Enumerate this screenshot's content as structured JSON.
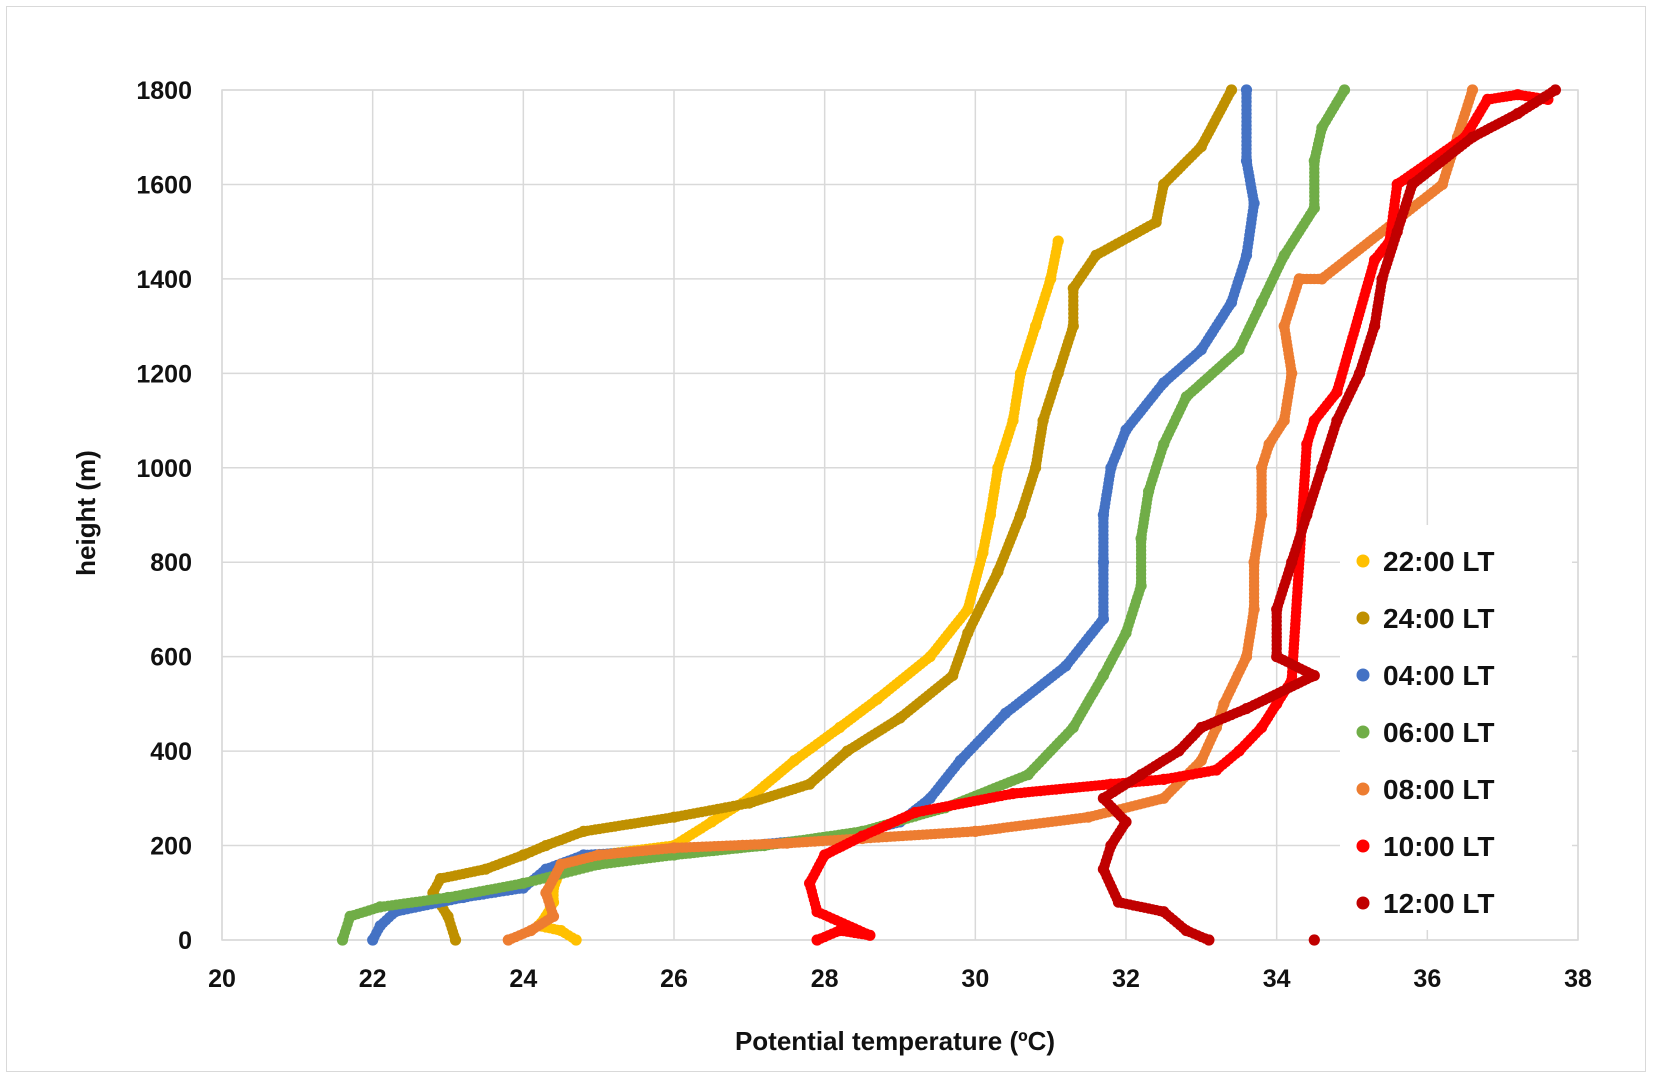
{
  "chart_data": {
    "type": "scatter",
    "title": "",
    "xlabel": "Potential temperature (ºC)",
    "ylabel": "height (m)",
    "xlim": [
      20,
      38
    ],
    "ylim": [
      0,
      1800
    ],
    "x_ticks": [
      "20",
      "22",
      "24",
      "26",
      "28",
      "30",
      "32",
      "34",
      "36",
      "38"
    ],
    "y_ticks": [
      "0",
      "200",
      "400",
      "600",
      "800",
      "1000",
      "1200",
      "1400",
      "1600",
      "1800"
    ],
    "grid": true,
    "legend_position": "right",
    "series": [
      {
        "name": "22:00 LT",
        "color": "#FFC000",
        "points": [
          [
            24.7,
            0
          ],
          [
            24.5,
            20
          ],
          [
            24.2,
            30
          ],
          [
            24.3,
            50
          ],
          [
            24.4,
            80
          ],
          [
            24.4,
            110
          ],
          [
            24.5,
            150
          ],
          [
            25.0,
            180
          ],
          [
            26.0,
            200
          ],
          [
            26.5,
            250
          ],
          [
            27.0,
            300
          ],
          [
            27.6,
            380
          ],
          [
            28.2,
            450
          ],
          [
            28.7,
            510
          ],
          [
            29.4,
            600
          ],
          [
            29.9,
            700
          ],
          [
            30.1,
            820
          ],
          [
            30.2,
            900
          ],
          [
            30.3,
            1000
          ],
          [
            30.5,
            1100
          ],
          [
            30.6,
            1200
          ],
          [
            30.8,
            1300
          ],
          [
            31.0,
            1400
          ],
          [
            31.1,
            1480
          ]
        ]
      },
      {
        "name": "24:00 LT",
        "color": "#BF9000",
        "points": [
          [
            23.1,
            0
          ],
          [
            23.0,
            50
          ],
          [
            22.8,
            100
          ],
          [
            22.9,
            130
          ],
          [
            23.5,
            150
          ],
          [
            24.0,
            180
          ],
          [
            24.3,
            200
          ],
          [
            24.8,
            230
          ],
          [
            26.0,
            260
          ],
          [
            27.0,
            290
          ],
          [
            27.8,
            330
          ],
          [
            28.3,
            400
          ],
          [
            29.0,
            470
          ],
          [
            29.7,
            560
          ],
          [
            29.9,
            650
          ],
          [
            30.3,
            780
          ],
          [
            30.6,
            900
          ],
          [
            30.8,
            1000
          ],
          [
            30.9,
            1100
          ],
          [
            31.1,
            1200
          ],
          [
            31.3,
            1300
          ],
          [
            31.3,
            1380
          ],
          [
            31.6,
            1450
          ],
          [
            32.4,
            1520
          ],
          [
            32.5,
            1600
          ],
          [
            33.0,
            1680
          ],
          [
            33.4,
            1800
          ]
        ]
      },
      {
        "name": "04:00 LT",
        "color": "#4472C4",
        "points": [
          [
            22.0,
            0
          ],
          [
            22.1,
            30
          ],
          [
            22.3,
            60
          ],
          [
            23.2,
            90
          ],
          [
            24.0,
            110
          ],
          [
            24.3,
            150
          ],
          [
            24.8,
            180
          ],
          [
            27.0,
            200
          ],
          [
            28.3,
            220
          ],
          [
            29.0,
            250
          ],
          [
            29.4,
            300
          ],
          [
            29.8,
            380
          ],
          [
            30.4,
            480
          ],
          [
            31.2,
            580
          ],
          [
            31.7,
            680
          ],
          [
            31.7,
            800
          ],
          [
            31.7,
            900
          ],
          [
            31.8,
            1000
          ],
          [
            32.0,
            1080
          ],
          [
            32.5,
            1180
          ],
          [
            33.0,
            1250
          ],
          [
            33.4,
            1350
          ],
          [
            33.6,
            1450
          ],
          [
            33.7,
            1560
          ],
          [
            33.6,
            1650
          ],
          [
            33.6,
            1800
          ]
        ]
      },
      {
        "name": "06:00 LT",
        "color": "#70AD47",
        "points": [
          [
            21.6,
            0
          ],
          [
            21.7,
            50
          ],
          [
            22.1,
            70
          ],
          [
            23.0,
            90
          ],
          [
            24.0,
            120
          ],
          [
            25.0,
            160
          ],
          [
            26.0,
            180
          ],
          [
            27.2,
            200
          ],
          [
            28.5,
            230
          ],
          [
            29.6,
            280
          ],
          [
            30.7,
            350
          ],
          [
            31.3,
            450
          ],
          [
            31.7,
            560
          ],
          [
            32.0,
            650
          ],
          [
            32.2,
            750
          ],
          [
            32.2,
            850
          ],
          [
            32.3,
            950
          ],
          [
            32.5,
            1050
          ],
          [
            32.8,
            1150
          ],
          [
            33.5,
            1250
          ],
          [
            33.8,
            1350
          ],
          [
            34.1,
            1450
          ],
          [
            34.5,
            1550
          ],
          [
            34.5,
            1650
          ],
          [
            34.6,
            1720
          ],
          [
            34.9,
            1800
          ]
        ]
      },
      {
        "name": "08:00 LT",
        "color": "#ED7D31",
        "points": [
          [
            23.8,
            0
          ],
          [
            24.1,
            20
          ],
          [
            24.4,
            50
          ],
          [
            24.3,
            100
          ],
          [
            24.5,
            160
          ],
          [
            25.0,
            180
          ],
          [
            26.0,
            195
          ],
          [
            27.5,
            205
          ],
          [
            28.5,
            215
          ],
          [
            30.0,
            230
          ],
          [
            31.5,
            260
          ],
          [
            32.5,
            300
          ],
          [
            33.0,
            380
          ],
          [
            33.2,
            450
          ],
          [
            33.3,
            500
          ],
          [
            33.6,
            600
          ],
          [
            33.7,
            700
          ],
          [
            33.7,
            800
          ],
          [
            33.8,
            900
          ],
          [
            33.8,
            1000
          ],
          [
            33.9,
            1050
          ],
          [
            34.1,
            1100
          ],
          [
            34.2,
            1200
          ],
          [
            34.1,
            1300
          ],
          [
            34.3,
            1400
          ],
          [
            34.6,
            1400
          ],
          [
            36.2,
            1600
          ],
          [
            36.4,
            1700
          ],
          [
            36.6,
            1800
          ]
        ]
      },
      {
        "name": "10:00 LT",
        "color": "#FF0000",
        "points": [
          [
            27.9,
            0
          ],
          [
            28.2,
            20
          ],
          [
            28.6,
            10
          ],
          [
            27.9,
            60
          ],
          [
            27.8,
            120
          ],
          [
            28.0,
            180
          ],
          [
            28.5,
            220
          ],
          [
            29.2,
            270
          ],
          [
            30.5,
            310
          ],
          [
            31.8,
            330
          ],
          [
            32.5,
            340
          ],
          [
            33.2,
            360
          ],
          [
            33.5,
            400
          ],
          [
            33.8,
            450
          ],
          [
            34.0,
            500
          ],
          [
            34.2,
            550
          ],
          [
            34.4,
            1050
          ],
          [
            34.5,
            1100
          ],
          [
            34.8,
            1160
          ],
          [
            35.3,
            1440
          ],
          [
            35.5,
            1480
          ],
          [
            35.6,
            1600
          ],
          [
            36.5,
            1700
          ],
          [
            36.8,
            1780
          ],
          [
            37.2,
            1790
          ],
          [
            37.6,
            1780
          ]
        ]
      },
      {
        "name": "12:00 LT",
        "color": "#C00000",
        "points": [
          [
            33.1,
            0
          ],
          [
            32.8,
            20
          ],
          [
            32.5,
            60
          ],
          [
            31.9,
            80
          ],
          [
            31.7,
            150
          ],
          [
            31.8,
            200
          ],
          [
            32.0,
            250
          ],
          [
            31.7,
            300
          ],
          [
            32.2,
            350
          ],
          [
            32.7,
            400
          ],
          [
            33.0,
            450
          ],
          [
            33.6,
            490
          ],
          [
            34.5,
            560
          ],
          [
            34.0,
            600
          ],
          [
            34.0,
            700
          ],
          [
            34.2,
            800
          ],
          [
            34.4,
            900
          ],
          [
            34.6,
            1000
          ],
          [
            34.8,
            1100
          ],
          [
            35.1,
            1200
          ],
          [
            35.3,
            1300
          ],
          [
            35.4,
            1400
          ],
          [
            35.6,
            1500
          ],
          [
            35.8,
            1600
          ],
          [
            36.6,
            1700
          ],
          [
            37.2,
            1750
          ],
          [
            37.7,
            1800
          ],
          [
            34.5,
            0
          ]
        ]
      }
    ]
  }
}
